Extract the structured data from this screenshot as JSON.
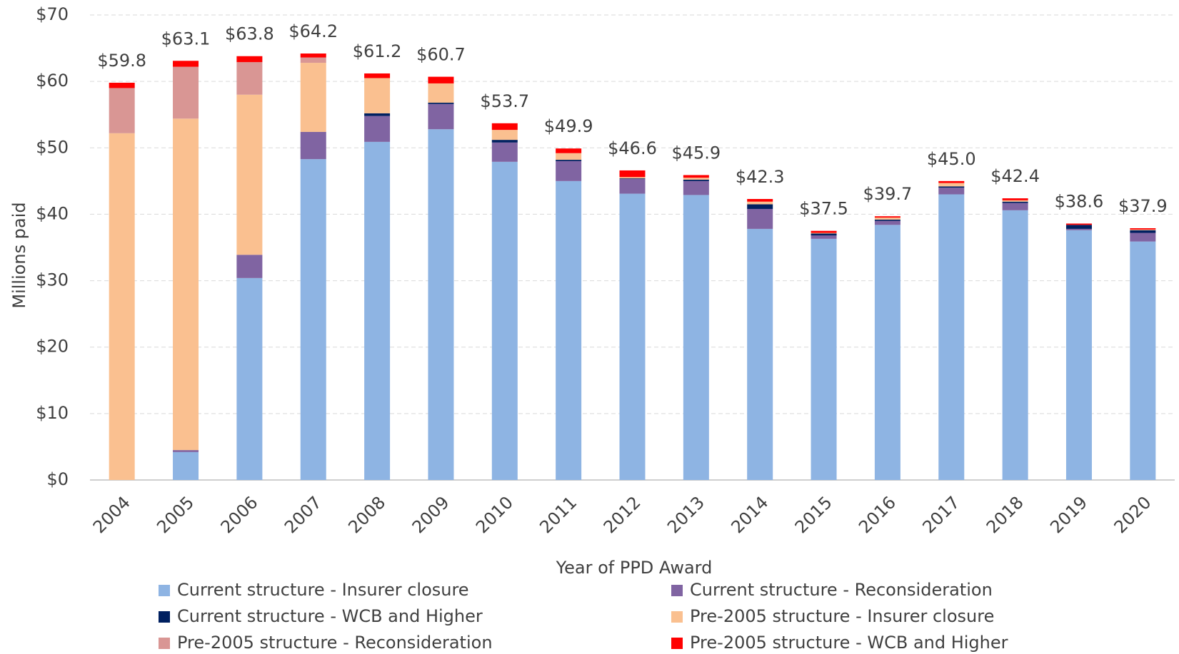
{
  "chart_data": {
    "type": "stacked_bar",
    "x_label": "Year of PPD Award",
    "y_label": "Millions paid",
    "categories": [
      "2004",
      "2005",
      "2006",
      "2007",
      "2008",
      "2009",
      "2010",
      "2011",
      "2012",
      "2013",
      "2014",
      "2015",
      "2016",
      "2017",
      "2018",
      "2019",
      "2020"
    ],
    "series": [
      {
        "name": "Current structure - Insurer closure",
        "color": "#8eb4e3",
        "values": [
          0,
          4.2,
          30.4,
          48.3,
          50.9,
          52.8,
          47.9,
          45.0,
          43.1,
          42.9,
          37.8,
          36.3,
          38.4,
          43.0,
          40.6,
          37.6,
          35.9
        ]
      },
      {
        "name": "Current structure - Reconsideration",
        "color": "#8064a2",
        "values": [
          0,
          0.3,
          3.5,
          4.1,
          3.9,
          3.8,
          2.9,
          3.0,
          2.2,
          2.1,
          3.0,
          0.5,
          0.6,
          1.0,
          1.1,
          0.2,
          1.3
        ]
      },
      {
        "name": "Current structure - WCB and Higher",
        "color": "#002060",
        "values": [
          0,
          0,
          0,
          0,
          0.4,
          0.2,
          0.4,
          0.2,
          0.1,
          0.2,
          0.7,
          0.3,
          0.2,
          0.2,
          0.2,
          0.6,
          0.4
        ]
      },
      {
        "name": "Pre-2005 structure - Insurer closure",
        "color": "#fac090",
        "values": [
          52.2,
          49.9,
          24.1,
          10.4,
          5.3,
          2.9,
          1.5,
          1.0,
          0.2,
          0.3,
          0.4,
          0.1,
          0.3,
          0.5,
          0.2,
          0,
          0.1
        ]
      },
      {
        "name": "Pre-2005 structure - Reconsideration",
        "color": "#d99694",
        "values": [
          6.8,
          7.8,
          4.9,
          0.8,
          0,
          0,
          0,
          0,
          0,
          0,
          0,
          0,
          0,
          0,
          0,
          0,
          0
        ]
      },
      {
        "name": "Pre-2005 structure - WCB and Higher",
        "color": "#ff0000",
        "values": [
          0.8,
          0.9,
          0.9,
          0.6,
          0.7,
          1.0,
          1.0,
          0.7,
          1.0,
          0.4,
          0.4,
          0.3,
          0.2,
          0.3,
          0.3,
          0.2,
          0.2
        ]
      }
    ],
    "totals": [
      59.8,
      63.1,
      63.8,
      64.2,
      61.2,
      60.7,
      53.7,
      49.9,
      46.6,
      45.9,
      42.3,
      37.5,
      39.7,
      45.0,
      42.4,
      38.6,
      37.9
    ],
    "total_labels": [
      "$59.8",
      "$63.1",
      "$63.8",
      "$64.2",
      "$61.2",
      "$60.7",
      "$53.7",
      "$49.9",
      "$46.6",
      "$45.9",
      "$42.3",
      "$37.5",
      "$39.7",
      "$45.0",
      "$42.4",
      "$38.6",
      "$37.9"
    ],
    "ylim": [
      0,
      70
    ],
    "yticks": [
      {
        "value": 0,
        "label": "$0"
      },
      {
        "value": 10,
        "label": "$10"
      },
      {
        "value": 20,
        "label": "$20"
      },
      {
        "value": 30,
        "label": "$30"
      },
      {
        "value": 40,
        "label": "$40"
      },
      {
        "value": 50,
        "label": "$50"
      },
      {
        "value": 60,
        "label": "$60"
      },
      {
        "value": 70,
        "label": "$70"
      }
    ],
    "grid": true,
    "legend": "bottom"
  }
}
